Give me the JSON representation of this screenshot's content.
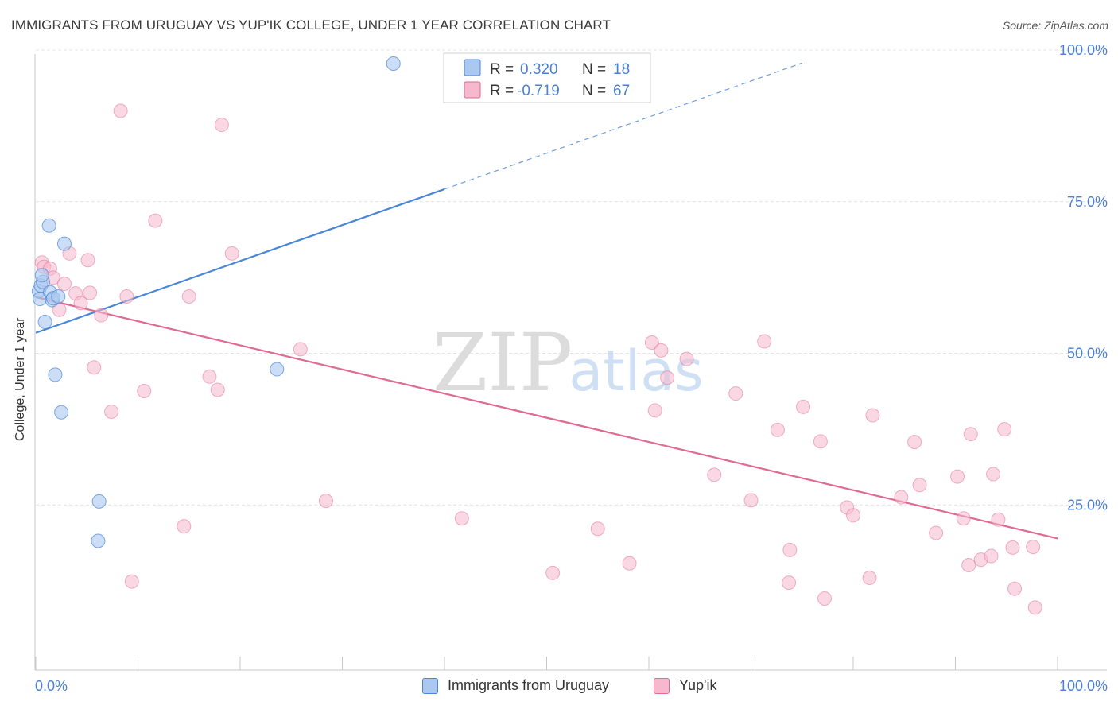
{
  "title": "IMMIGRANTS FROM URUGUAY VS YUP'IK COLLEGE, UNDER 1 YEAR CORRELATION CHART",
  "source": "Source: ZipAtlas.com",
  "watermark": {
    "zip": "ZIP",
    "atlas": "atlas"
  },
  "colors": {
    "blue": "#4a86d8",
    "blue_fill": "#aac8f0",
    "pink": "#e06a94",
    "pink_fill": "#f6b8cc",
    "accent_text": "#4a7fd4"
  },
  "legend_top": {
    "row1": {
      "r_label": "R =",
      "r_value": "0.320",
      "n_label": "N =",
      "n_value": "18"
    },
    "row2": {
      "r_label": "R =",
      "r_value": "-0.719",
      "n_label": "N =",
      "n_value": "67"
    }
  },
  "legend_bottom": {
    "series1": "Immigrants from Uruguay",
    "series2": "Yup'ik"
  },
  "chart_data": {
    "type": "scatter",
    "title": "IMMIGRANTS FROM URUGUAY VS YUP'IK COLLEGE, UNDER 1 YEAR CORRELATION CHART",
    "xlabel": "",
    "ylabel": "College, Under 1 year",
    "xlim": [
      0,
      100
    ],
    "ylim": [
      0,
      102
    ],
    "x_tick_labels": [
      "0.0%",
      "100.0%"
    ],
    "y_tick_labels": [
      {
        "value": 100,
        "label": "100.0%"
      },
      {
        "value": 75,
        "label": "75.0%"
      },
      {
        "value": 50,
        "label": "50.0%"
      },
      {
        "value": 25,
        "label": "25.0%"
      }
    ],
    "grid": true,
    "series": [
      {
        "name": "Immigrants from Uruguay",
        "color": "#4a86d8",
        "r": 0.32,
        "n": 18,
        "points": [
          [
            0.3,
            62.5
          ],
          [
            0.4,
            61.2
          ],
          [
            0.5,
            63.4
          ],
          [
            0.7,
            64.0
          ],
          [
            0.9,
            57.4
          ],
          [
            1.3,
            73.3
          ],
          [
            1.4,
            62.3
          ],
          [
            1.6,
            61.0
          ],
          [
            1.7,
            61.3
          ],
          [
            1.9,
            48.7
          ],
          [
            2.2,
            61.6
          ],
          [
            2.5,
            42.5
          ],
          [
            2.8,
            70.3
          ],
          [
            6.2,
            27.8
          ],
          [
            6.1,
            21.3
          ],
          [
            23.6,
            49.6
          ],
          [
            35.0,
            100.0
          ],
          [
            0.6,
            65.1
          ]
        ],
        "trend": {
          "x0": 0,
          "y0": 55.6,
          "x1": 40,
          "y1": 79.3,
          "dash_x1": 75,
          "dash_y1": 100.1
        }
      },
      {
        "name": "Yup'ik",
        "color": "#e06a94",
        "r": -0.719,
        "n": 67,
        "points": [
          [
            0.6,
            67.2
          ],
          [
            0.8,
            66.5
          ],
          [
            1.4,
            66.2
          ],
          [
            1.7,
            64.7
          ],
          [
            2.3,
            59.4
          ],
          [
            2.8,
            63.7
          ],
          [
            3.3,
            68.7
          ],
          [
            3.9,
            62.1
          ],
          [
            4.4,
            60.5
          ],
          [
            5.1,
            67.6
          ],
          [
            5.3,
            62.2
          ],
          [
            5.7,
            49.9
          ],
          [
            6.4,
            58.5
          ],
          [
            7.4,
            42.6
          ],
          [
            8.3,
            92.2
          ],
          [
            8.9,
            61.6
          ],
          [
            9.4,
            14.6
          ],
          [
            10.6,
            46.0
          ],
          [
            11.7,
            74.1
          ],
          [
            14.5,
            23.7
          ],
          [
            15.0,
            61.6
          ],
          [
            17.0,
            48.4
          ],
          [
            17.8,
            46.2
          ],
          [
            18.2,
            89.9
          ],
          [
            19.2,
            68.7
          ],
          [
            25.9,
            52.9
          ],
          [
            28.4,
            27.9
          ],
          [
            41.7,
            25.0
          ],
          [
            50.6,
            16.0
          ],
          [
            55.0,
            23.3
          ],
          [
            58.1,
            17.6
          ],
          [
            60.3,
            54.0
          ],
          [
            60.6,
            42.8
          ],
          [
            61.2,
            52.7
          ],
          [
            61.8,
            48.2
          ],
          [
            63.7,
            51.3
          ],
          [
            66.4,
            32.2
          ],
          [
            68.5,
            45.6
          ],
          [
            70.0,
            28.0
          ],
          [
            71.3,
            54.2
          ],
          [
            72.6,
            39.6
          ],
          [
            73.8,
            19.8
          ],
          [
            73.7,
            14.4
          ],
          [
            75.1,
            43.4
          ],
          [
            76.8,
            37.7
          ],
          [
            77.2,
            11.8
          ],
          [
            79.4,
            26.8
          ],
          [
            80.0,
            25.5
          ],
          [
            81.6,
            15.2
          ],
          [
            81.9,
            42.0
          ],
          [
            84.7,
            28.5
          ],
          [
            86.0,
            37.6
          ],
          [
            86.5,
            30.5
          ],
          [
            88.1,
            22.6
          ],
          [
            90.2,
            31.9
          ],
          [
            90.8,
            25.0
          ],
          [
            91.3,
            17.3
          ],
          [
            91.5,
            38.9
          ],
          [
            92.5,
            18.2
          ],
          [
            93.5,
            18.8
          ],
          [
            93.7,
            32.3
          ],
          [
            94.2,
            24.8
          ],
          [
            94.8,
            39.7
          ],
          [
            95.6,
            20.2
          ],
          [
            95.8,
            13.4
          ],
          [
            97.6,
            20.3
          ],
          [
            97.8,
            10.3
          ]
        ],
        "trend": {
          "x0": 0,
          "y0": 61.5,
          "x1": 100,
          "y1": 21.7
        }
      }
    ]
  }
}
